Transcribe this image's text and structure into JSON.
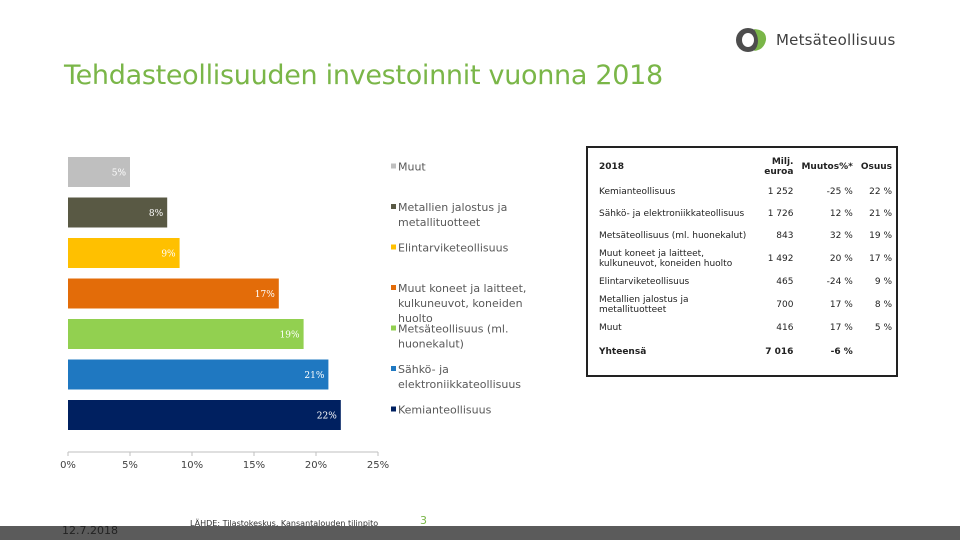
{
  "brand": {
    "name": "Metsäteollisuus",
    "logo_colors": [
      "#4d4d4d",
      "#7ab648"
    ]
  },
  "title": "Tehdasteollisuuden investoinnit vuonna 2018",
  "chart_data": {
    "type": "bar",
    "orientation": "horizontal",
    "title": "",
    "xlim": [
      0,
      25
    ],
    "x_ticks": [
      "0%",
      "5%",
      "10%",
      "15%",
      "20%",
      "25%"
    ],
    "series": [
      {
        "category": "Muut",
        "value": 5,
        "label": "5%",
        "color": "#bfbfbf"
      },
      {
        "category": "Metallien jalostus ja metallituotteet",
        "value": 8,
        "label": "8%",
        "color": "#595944"
      },
      {
        "category": "Elintarviketeollisuus",
        "value": 9,
        "label": "9%",
        "color": "#ffc000"
      },
      {
        "category": "Muut koneet ja laitteet, kulkuneuvot, koneiden huolto",
        "value": 17,
        "label": "17%",
        "color": "#e36c09"
      },
      {
        "category": "Metsäteollisuus (ml. huonekalut)",
        "value": 19,
        "label": "19%",
        "color": "#92d050"
      },
      {
        "category": "Sähkö- ja elektroniikkateollisuus",
        "value": 21,
        "label": "21%",
        "color": "#1f78c1"
      },
      {
        "category": "Kemianteollisuus",
        "value": 22,
        "label": "22%",
        "color": "#002060"
      }
    ],
    "legend_position": "right",
    "grid": false
  },
  "table": {
    "headers": [
      "2018",
      "Milj. euroa",
      "Muutos%*",
      "Osuus"
    ],
    "rows": [
      [
        "Kemianteollisuus",
        "1 252",
        "-25 %",
        "22 %"
      ],
      [
        "Sähkö- ja elektroniikkateollisuus",
        "1 726",
        "12 %",
        "21 %"
      ],
      [
        "Metsäteollisuus (ml. huonekalut)",
        "843",
        "32 %",
        "19 %"
      ],
      [
        "Muut koneet ja laitteet, kulkuneuvot, koneiden huolto",
        "1 492",
        "20 %",
        "17 %"
      ],
      [
        "Elintarviketeollisuus",
        "465",
        "-24 %",
        "9 %"
      ],
      [
        "Metallien jalostus ja metallituotteet",
        "700",
        "17 %",
        "8 %"
      ],
      [
        "Muut",
        "416",
        "17 %",
        "5 %"
      ]
    ],
    "total": [
      "Yhteensä",
      "7 016",
      "-6 %",
      ""
    ]
  },
  "footer": {
    "date": "12.7.2018",
    "source": "LÄHDE: Tilastokeskus, Kansantalouden tilinpito",
    "page": "3"
  }
}
